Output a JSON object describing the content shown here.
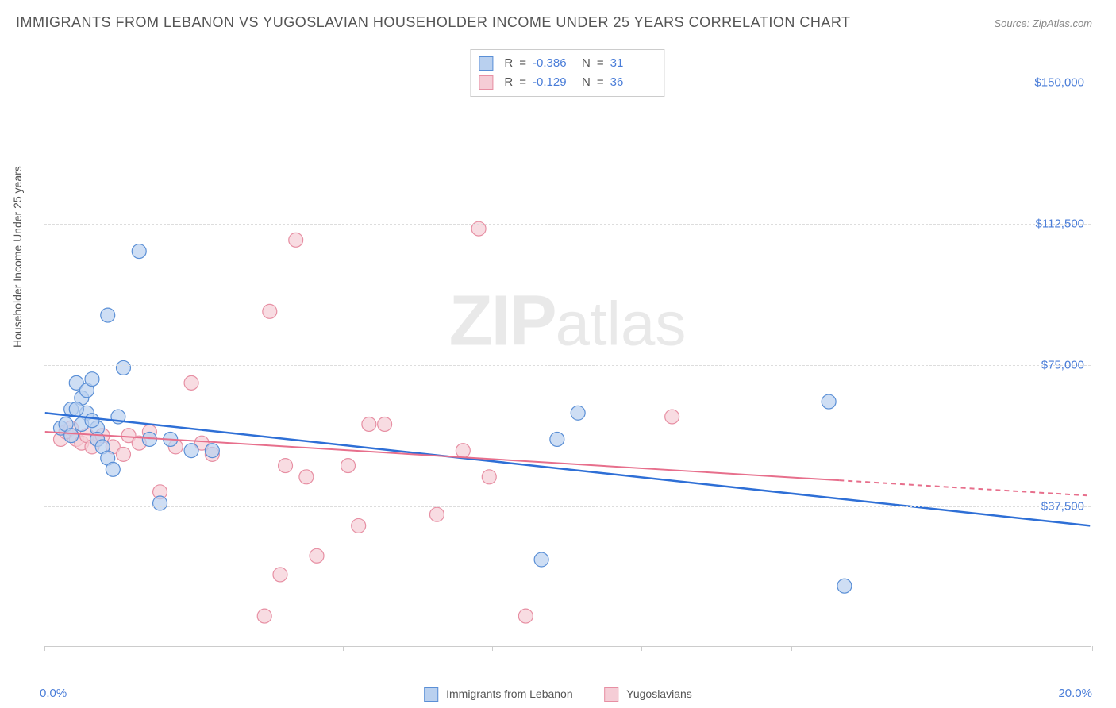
{
  "title": "IMMIGRANTS FROM LEBANON VS YUGOSLAVIAN HOUSEHOLDER INCOME UNDER 25 YEARS CORRELATION CHART",
  "source": "Source: ZipAtlas.com",
  "watermark_zip": "ZIP",
  "watermark_atlas": "atlas",
  "y_axis_title": "Householder Income Under 25 years",
  "chart": {
    "type": "scatter",
    "background_color": "#ffffff",
    "grid_color": "#dddddd",
    "xlim": [
      0,
      20
    ],
    "ylim": [
      0,
      160000
    ],
    "x_min_label": "0.0%",
    "x_max_label": "20.0%",
    "x_tick_positions": [
      0,
      2.85,
      5.7,
      8.55,
      11.4,
      14.25,
      17.1,
      20
    ],
    "y_ticks": [
      {
        "v": 37500,
        "label": "$37,500"
      },
      {
        "v": 75000,
        "label": "$75,000"
      },
      {
        "v": 112500,
        "label": "$112,500"
      },
      {
        "v": 150000,
        "label": "$150,000"
      }
    ],
    "series": [
      {
        "name": "Immigrants from Lebanon",
        "marker_fill": "#b9d0ef",
        "marker_stroke": "#5a8fd6",
        "marker_radius": 9,
        "line_color": "#2e6fd6",
        "line_width": 2.5,
        "r_value": "-0.386",
        "n_value": "31",
        "regression": {
          "x1": 0,
          "y1": 62000,
          "x2": 20,
          "y2": 32000
        },
        "dash_from": null,
        "points": [
          [
            0.3,
            58000
          ],
          [
            0.4,
            59000
          ],
          [
            0.5,
            63000
          ],
          [
            0.5,
            56000
          ],
          [
            0.6,
            70000
          ],
          [
            0.7,
            66000
          ],
          [
            0.8,
            68000
          ],
          [
            0.8,
            62000
          ],
          [
            0.9,
            71000
          ],
          [
            1.0,
            58000
          ],
          [
            1.0,
            55000
          ],
          [
            1.1,
            53000
          ],
          [
            1.2,
            50000
          ],
          [
            1.3,
            47000
          ],
          [
            1.5,
            74000
          ],
          [
            1.8,
            105000
          ],
          [
            1.2,
            88000
          ],
          [
            2.0,
            55000
          ],
          [
            2.2,
            38000
          ],
          [
            2.4,
            55000
          ],
          [
            2.8,
            52000
          ],
          [
            3.2,
            52000
          ],
          [
            0.6,
            63000
          ],
          [
            0.7,
            59000
          ],
          [
            0.9,
            60000
          ],
          [
            9.5,
            23000
          ],
          [
            9.8,
            55000
          ],
          [
            10.2,
            62000
          ],
          [
            15.0,
            65000
          ],
          [
            15.3,
            16000
          ],
          [
            1.4,
            61000
          ]
        ]
      },
      {
        "name": "Yugoslavians",
        "marker_fill": "#f5cdd6",
        "marker_stroke": "#e78fa3",
        "marker_radius": 9,
        "line_color": "#e76f8c",
        "line_width": 2,
        "r_value": "-0.129",
        "n_value": "36",
        "regression": {
          "x1": 0,
          "y1": 57000,
          "x2": 20,
          "y2": 40000
        },
        "dash_from": 15.2,
        "points": [
          [
            0.3,
            55000
          ],
          [
            0.4,
            57000
          ],
          [
            0.5,
            58000
          ],
          [
            0.6,
            55000
          ],
          [
            0.7,
            54000
          ],
          [
            0.8,
            56000
          ],
          [
            0.9,
            53000
          ],
          [
            1.0,
            55000
          ],
          [
            1.1,
            56000
          ],
          [
            1.3,
            53000
          ],
          [
            1.5,
            51000
          ],
          [
            1.6,
            56000
          ],
          [
            1.8,
            54000
          ],
          [
            2.0,
            57000
          ],
          [
            2.2,
            41000
          ],
          [
            2.5,
            53000
          ],
          [
            2.8,
            70000
          ],
          [
            3.0,
            54000
          ],
          [
            3.2,
            51000
          ],
          [
            4.3,
            89000
          ],
          [
            4.5,
            19000
          ],
          [
            4.6,
            48000
          ],
          [
            4.8,
            108000
          ],
          [
            5.0,
            45000
          ],
          [
            5.2,
            24000
          ],
          [
            5.8,
            48000
          ],
          [
            6.0,
            32000
          ],
          [
            6.2,
            59000
          ],
          [
            6.5,
            59000
          ],
          [
            7.5,
            35000
          ],
          [
            8.0,
            52000
          ],
          [
            8.3,
            111000
          ],
          [
            8.5,
            45000
          ],
          [
            9.2,
            8000
          ],
          [
            4.2,
            8000
          ],
          [
            12.0,
            61000
          ]
        ]
      }
    ]
  },
  "legend": {
    "series1_label": "Immigrants from Lebanon",
    "series2_label": "Yugoslavians",
    "r_label": "R",
    "n_label": "N",
    "eq": "="
  }
}
